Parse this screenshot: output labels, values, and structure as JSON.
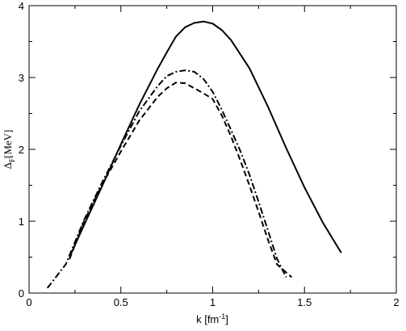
{
  "chart_data": {
    "type": "line",
    "xlabel": "k [fm",
    "xlabel_superscript": "-1",
    "xlabel_suffix": "]",
    "ylabel_symbol": "Δ",
    "ylabel_subscript": "F",
    "ylabel_unit": "[MeV]",
    "xlim": [
      0,
      2
    ],
    "ylim": [
      0,
      4
    ],
    "x_ticks": [
      "0",
      "0.5",
      "1",
      "1.5",
      "2"
    ],
    "y_ticks": [
      "0",
      "1",
      "2",
      "3",
      "4"
    ],
    "grid": false,
    "legend": "none",
    "series": [
      {
        "style": "solid",
        "color": "#000000",
        "points": [
          [
            0.22,
            0.5
          ],
          [
            0.3,
            0.95
          ],
          [
            0.4,
            1.5
          ],
          [
            0.5,
            2.07
          ],
          [
            0.6,
            2.62
          ],
          [
            0.7,
            3.12
          ],
          [
            0.75,
            3.35
          ],
          [
            0.8,
            3.57
          ],
          [
            0.85,
            3.7
          ],
          [
            0.9,
            3.76
          ],
          [
            0.95,
            3.78
          ],
          [
            1.0,
            3.75
          ],
          [
            1.05,
            3.66
          ],
          [
            1.1,
            3.52
          ],
          [
            1.2,
            3.13
          ],
          [
            1.3,
            2.6
          ],
          [
            1.4,
            2.02
          ],
          [
            1.5,
            1.47
          ],
          [
            1.6,
            0.98
          ],
          [
            1.7,
            0.56
          ]
        ]
      },
      {
        "style": "dashdot",
        "color": "#000000",
        "points": [
          [
            0.1,
            0.07
          ],
          [
            0.2,
            0.4
          ],
          [
            0.3,
            1.02
          ],
          [
            0.4,
            1.55
          ],
          [
            0.5,
            2.05
          ],
          [
            0.6,
            2.53
          ],
          [
            0.7,
            2.88
          ],
          [
            0.75,
            3.02
          ],
          [
            0.8,
            3.08
          ],
          [
            0.85,
            3.1
          ],
          [
            0.9,
            3.08
          ],
          [
            0.95,
            2.98
          ],
          [
            1.0,
            2.8
          ],
          [
            1.05,
            2.55
          ],
          [
            1.1,
            2.27
          ],
          [
            1.15,
            1.98
          ],
          [
            1.2,
            1.65
          ],
          [
            1.25,
            1.27
          ],
          [
            1.3,
            0.88
          ],
          [
            1.35,
            0.48
          ],
          [
            1.4,
            0.22
          ]
        ]
      },
      {
        "style": "dashed",
        "color": "#000000",
        "points": [
          [
            0.22,
            0.47
          ],
          [
            0.3,
            1.0
          ],
          [
            0.4,
            1.52
          ],
          [
            0.5,
            1.97
          ],
          [
            0.6,
            2.4
          ],
          [
            0.7,
            2.73
          ],
          [
            0.75,
            2.85
          ],
          [
            0.8,
            2.93
          ],
          [
            0.85,
            2.92
          ],
          [
            0.9,
            2.85
          ],
          [
            0.95,
            2.78
          ],
          [
            1.0,
            2.7
          ],
          [
            1.05,
            2.47
          ],
          [
            1.1,
            2.18
          ],
          [
            1.15,
            1.85
          ],
          [
            1.2,
            1.5
          ],
          [
            1.25,
            1.13
          ],
          [
            1.3,
            0.75
          ],
          [
            1.35,
            0.4
          ],
          [
            1.43,
            0.22
          ]
        ]
      }
    ]
  }
}
